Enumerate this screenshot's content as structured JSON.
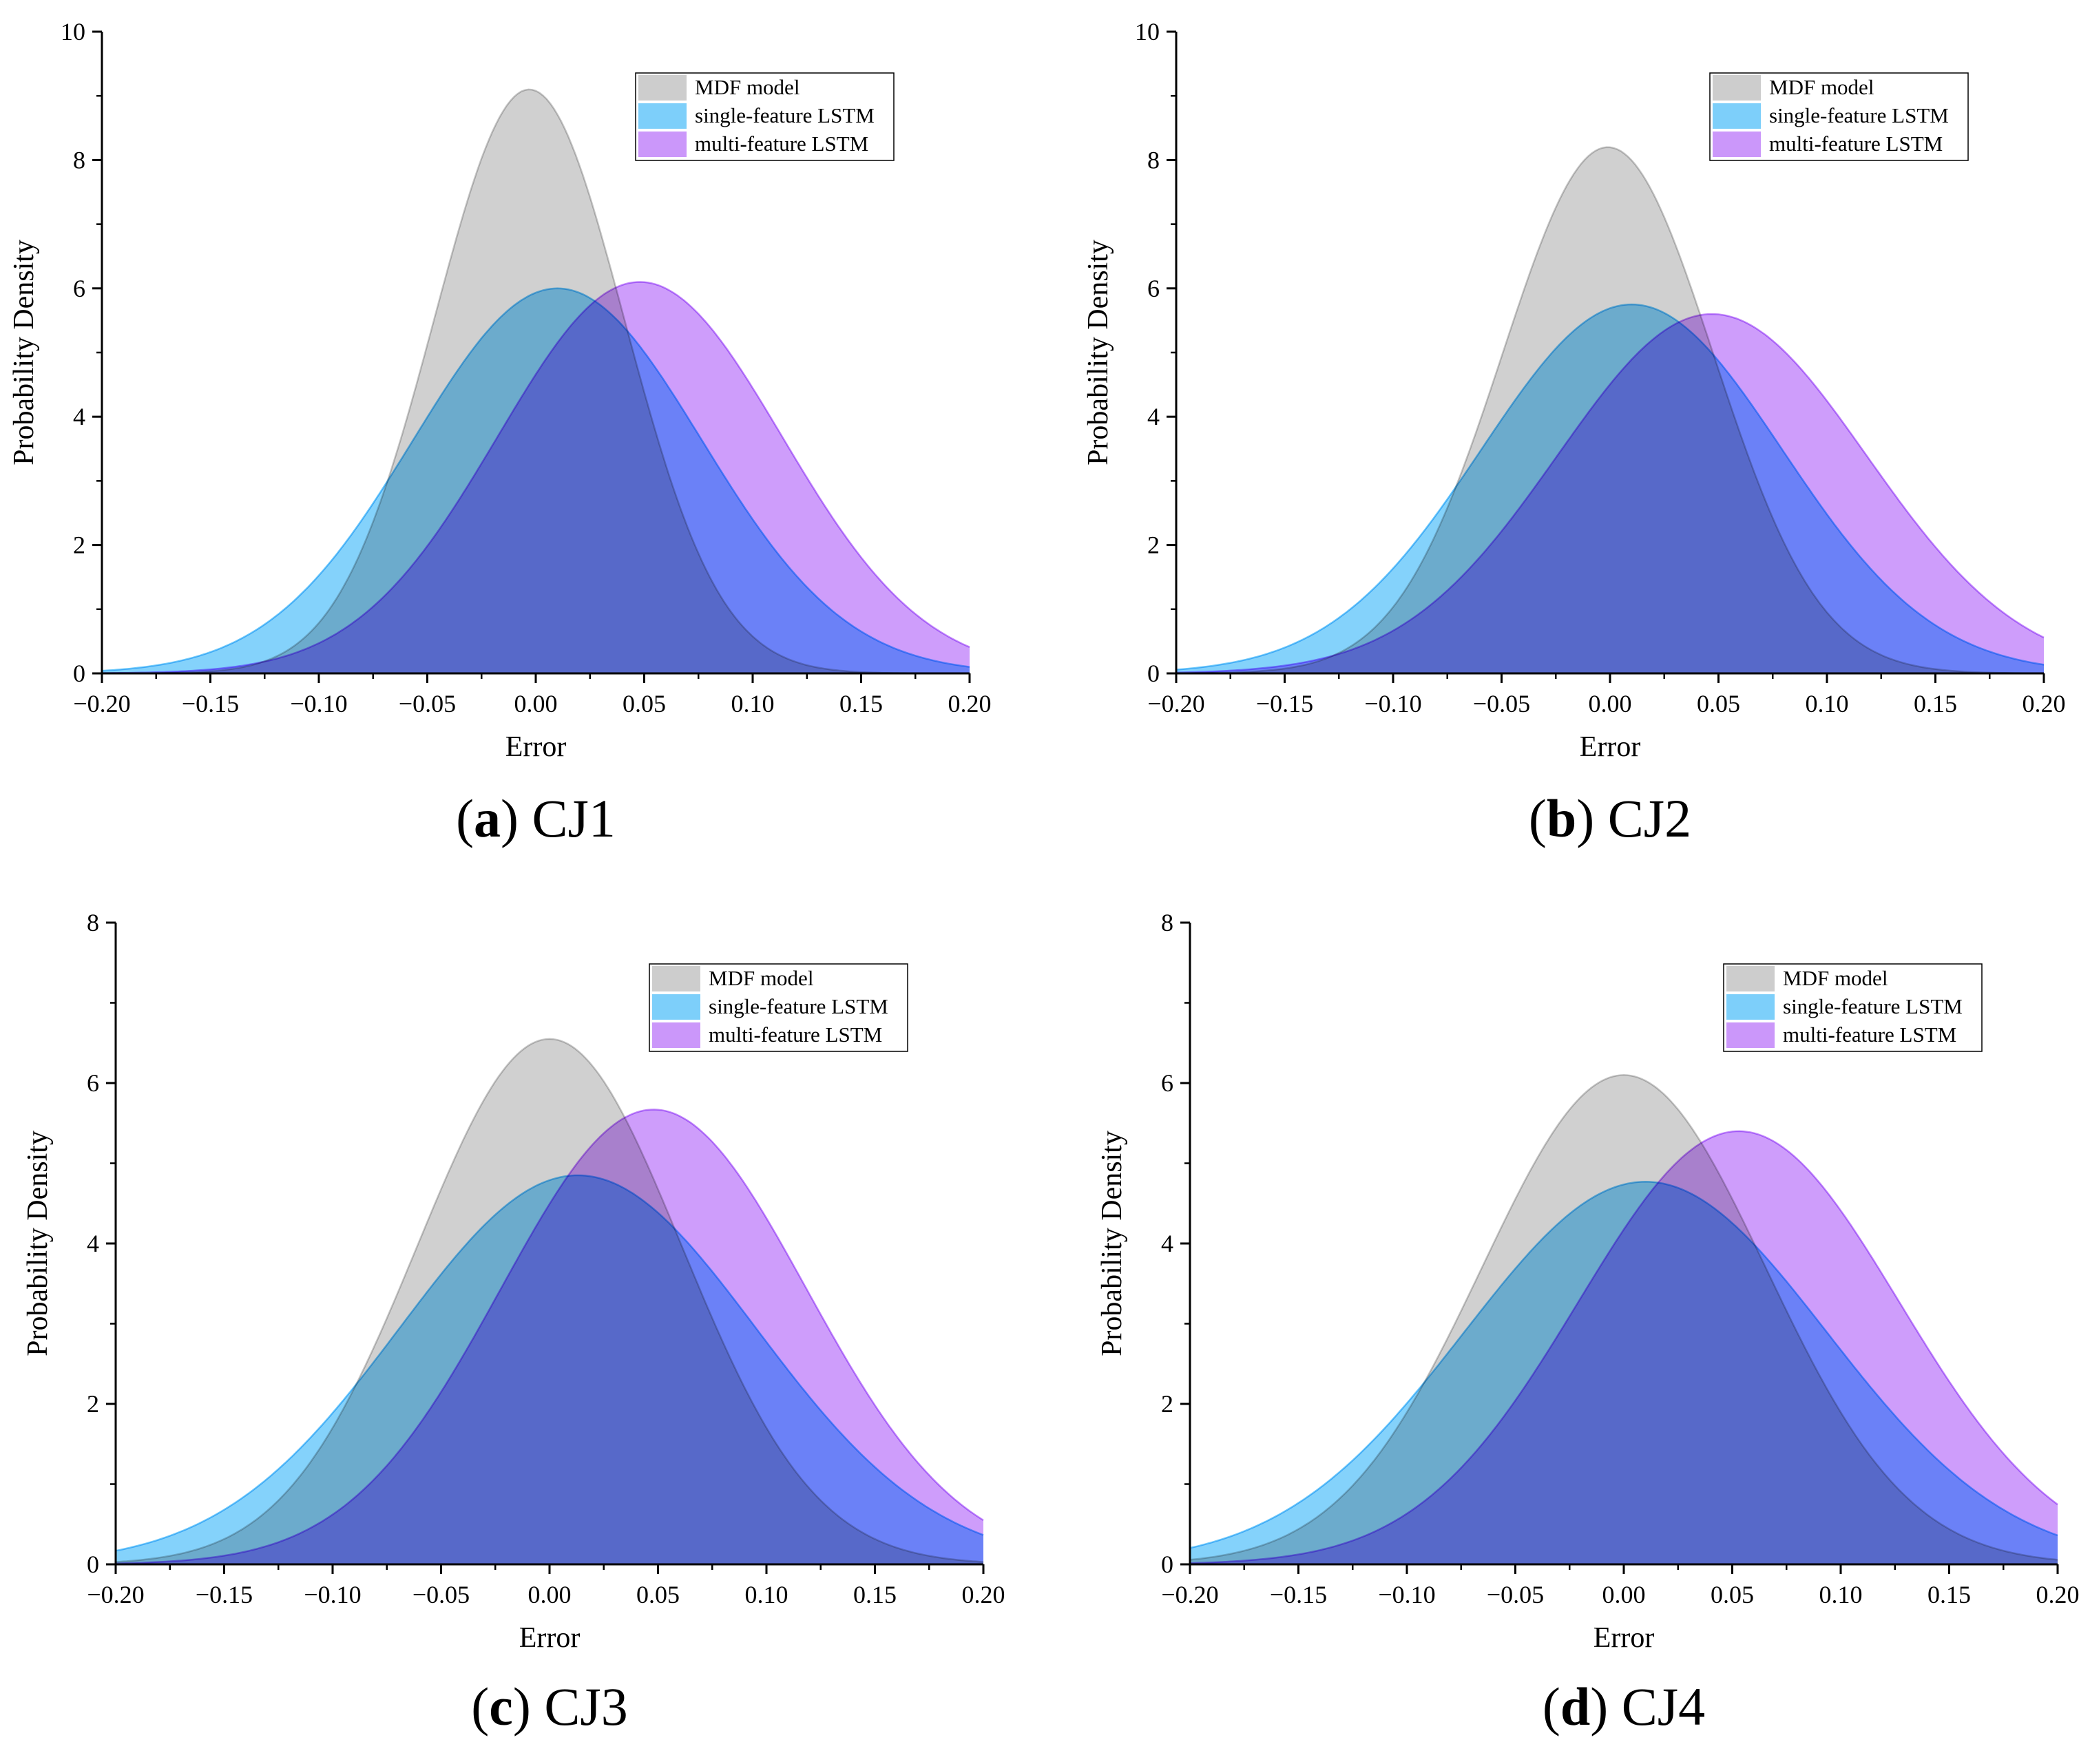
{
  "figure": {
    "panels_count": 4
  },
  "chart_data": [
    {
      "type": "area",
      "panel_id": "a",
      "caption": {
        "letter": "a",
        "text": "CJ1"
      },
      "xlabel": "Error",
      "ylabel": "Probability Density",
      "xlim": [
        -0.2,
        0.2
      ],
      "ylim": [
        0,
        10
      ],
      "xticks": [
        -0.2,
        -0.15,
        -0.1,
        -0.05,
        0.0,
        0.05,
        0.1,
        0.15,
        0.2
      ],
      "xtick_labels": [
        "−0.20",
        "−0.15",
        "−0.10",
        "−0.05",
        "0.00",
        "0.05",
        "0.10",
        "0.15",
        "0.20"
      ],
      "yticks": [
        0,
        2,
        4,
        6,
        8,
        10
      ],
      "ytick_labels": [
        "0",
        "2",
        "4",
        "6",
        "8",
        "10"
      ],
      "legend_position": "top-right",
      "series": [
        {
          "name": "MDF model",
          "distribution": "normal",
          "mean": -0.003,
          "peak": 9.1,
          "color": "#c8c8c8"
        },
        {
          "name": "single-feature LSTM",
          "distribution": "normal",
          "mean": 0.01,
          "peak": 6.0,
          "color": "#6fcafa"
        },
        {
          "name": "multi-feature LSTM",
          "distribution": "normal",
          "mean": 0.048,
          "peak": 6.1,
          "color": "#c58cfa"
        }
      ]
    },
    {
      "type": "area",
      "panel_id": "b",
      "caption": {
        "letter": "b",
        "text": "CJ2"
      },
      "xlabel": "Error",
      "ylabel": "Probability Density",
      "xlim": [
        -0.2,
        0.2
      ],
      "ylim": [
        0,
        10
      ],
      "xticks": [
        -0.2,
        -0.15,
        -0.1,
        -0.05,
        0.0,
        0.05,
        0.1,
        0.15,
        0.2
      ],
      "xtick_labels": [
        "−0.20",
        "−0.15",
        "−0.10",
        "−0.05",
        "0.00",
        "0.05",
        "0.10",
        "0.15",
        "0.20"
      ],
      "yticks": [
        0,
        2,
        4,
        6,
        8,
        10
      ],
      "ytick_labels": [
        "0",
        "2",
        "4",
        "6",
        "8",
        "10"
      ],
      "legend_position": "top-right",
      "series": [
        {
          "name": "MDF model",
          "distribution": "normal",
          "mean": -0.001,
          "peak": 8.2,
          "color": "#c8c8c8"
        },
        {
          "name": "single-feature LSTM",
          "distribution": "normal",
          "mean": 0.01,
          "peak": 5.75,
          "color": "#6fcafa"
        },
        {
          "name": "multi-feature LSTM",
          "distribution": "normal",
          "mean": 0.047,
          "peak": 5.6,
          "color": "#c58cfa"
        }
      ]
    },
    {
      "type": "area",
      "panel_id": "c",
      "caption": {
        "letter": "c",
        "text": "CJ3"
      },
      "xlabel": "Error",
      "ylabel": "Probability Density",
      "xlim": [
        -0.2,
        0.2
      ],
      "ylim": [
        0,
        8
      ],
      "xticks": [
        -0.2,
        -0.15,
        -0.1,
        -0.05,
        0.0,
        0.05,
        0.1,
        0.15,
        0.2
      ],
      "xtick_labels": [
        "−0.20",
        "−0.15",
        "−0.10",
        "−0.05",
        "0.00",
        "0.05",
        "0.10",
        "0.15",
        "0.20"
      ],
      "yticks": [
        0,
        2,
        4,
        6,
        8
      ],
      "ytick_labels": [
        "0",
        "2",
        "4",
        "6",
        "8"
      ],
      "legend_position": "top-right",
      "series": [
        {
          "name": "MDF model",
          "distribution": "normal",
          "mean": 0.0,
          "peak": 6.55,
          "color": "#c8c8c8"
        },
        {
          "name": "single-feature LSTM",
          "distribution": "normal",
          "mean": 0.013,
          "peak": 4.85,
          "color": "#6fcafa"
        },
        {
          "name": "multi-feature LSTM",
          "distribution": "normal",
          "mean": 0.048,
          "peak": 5.67,
          "color": "#c58cfa"
        }
      ]
    },
    {
      "type": "area",
      "panel_id": "d",
      "caption": {
        "letter": "d",
        "text": "CJ4"
      },
      "xlabel": "Error",
      "ylabel": "Probability Density",
      "xlim": [
        -0.2,
        0.2
      ],
      "ylim": [
        0,
        8
      ],
      "xticks": [
        -0.2,
        -0.15,
        -0.1,
        -0.05,
        0.0,
        0.05,
        0.1,
        0.15,
        0.2
      ],
      "xtick_labels": [
        "−0.20",
        "−0.15",
        "−0.10",
        "−0.05",
        "0.00",
        "0.05",
        "0.10",
        "0.15",
        "0.20"
      ],
      "yticks": [
        0,
        2,
        4,
        6,
        8
      ],
      "ytick_labels": [
        "0",
        "2",
        "4",
        "6",
        "8"
      ],
      "legend_position": "top-right",
      "series": [
        {
          "name": "MDF model",
          "distribution": "normal",
          "mean": 0.0,
          "peak": 6.1,
          "color": "#c8c8c8"
        },
        {
          "name": "single-feature LSTM",
          "distribution": "normal",
          "mean": 0.01,
          "peak": 4.77,
          "color": "#6fcafa"
        },
        {
          "name": "multi-feature LSTM",
          "distribution": "normal",
          "mean": 0.053,
          "peak": 5.4,
          "color": "#c58cfa"
        }
      ]
    }
  ]
}
